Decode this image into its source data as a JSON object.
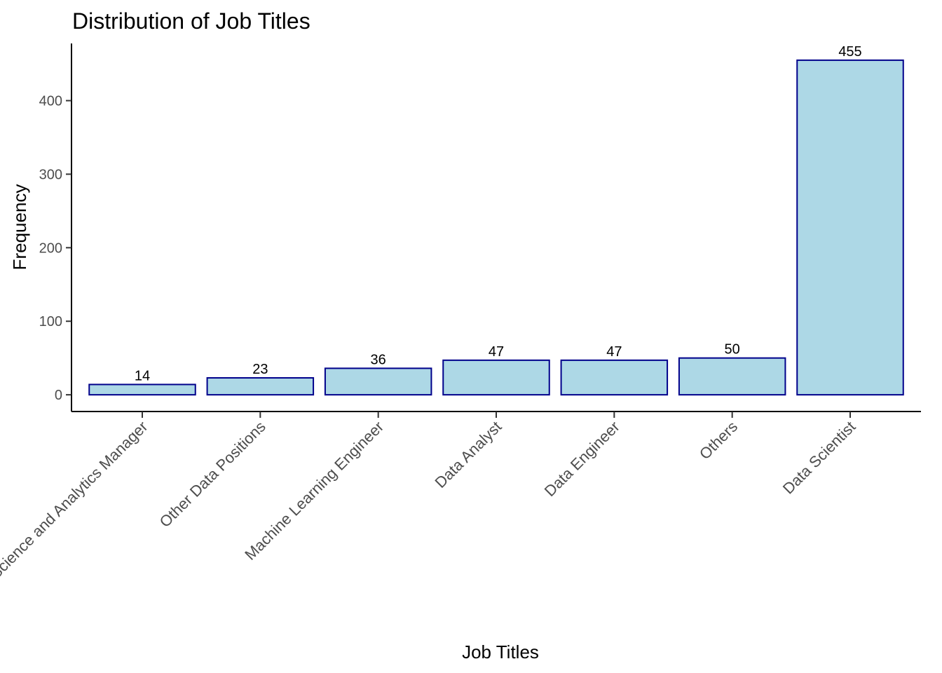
{
  "chart_data": {
    "type": "bar",
    "title": "Distribution of Job Titles",
    "xlabel": "Job Titles",
    "ylabel": "Frequency",
    "categories": [
      "Data Science and Analytics Manager",
      "Other Data Positions",
      "Machine Learning Engineer",
      "Data Analyst",
      "Data Engineer",
      "Others",
      "Data Scientist"
    ],
    "values": [
      14,
      23,
      36,
      47,
      47,
      50,
      455
    ],
    "yticks": [
      0,
      100,
      200,
      300,
      400
    ],
    "ylim": [
      -22.75,
      477.75
    ],
    "grid": false,
    "legend": "none",
    "colors": {
      "bar_fill": "#add8e6",
      "bar_stroke": "#00008b"
    }
  }
}
